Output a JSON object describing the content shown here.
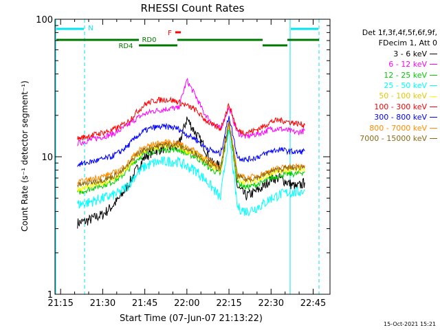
{
  "window": {
    "title": "RHESSI Count Rates"
  },
  "legend": {
    "header_line1": "Det 1f,3f,4f,5f,6f,9f,",
    "header_line2": "FDecim 1, Att 0"
  },
  "footer": {
    "timestamp": "15-Oct-2021 15:21"
  },
  "chart_data": {
    "type": "line",
    "title": "RHESSI Count Rates",
    "xlabel": "Start Time (07-Jun-07 21:13:22)",
    "ylabel": "Count Rate (s⁻¹ detector segment⁻¹)",
    "yscale": "log",
    "ylim": [
      1,
      100
    ],
    "xlim": [
      "21:13",
      "22:51"
    ],
    "x_ticks": [
      "21:15",
      "21:30",
      "21:45",
      "22:00",
      "22:15",
      "22:30",
      "22:45"
    ],
    "y_ticks": [
      "1",
      "10",
      "100"
    ],
    "legend_position": "right",
    "grid": false,
    "x": [
      "21:21",
      "21:24",
      "21:27",
      "21:30",
      "21:33",
      "21:36",
      "21:39",
      "21:42",
      "21:45",
      "21:48",
      "21:51",
      "21:54",
      "21:57",
      "22:00",
      "22:03",
      "22:06",
      "22:09",
      "22:12",
      "22:15",
      "22:18",
      "22:21",
      "22:24",
      "22:27",
      "22:30",
      "22:33",
      "22:36",
      "22:39",
      "22:42"
    ],
    "series": [
      {
        "name": "3 - 6 keV",
        "color": "#000000",
        "values": [
          3.3,
          3.4,
          3.6,
          3.8,
          4.3,
          5.0,
          6.2,
          8.0,
          10.0,
          11.0,
          11.5,
          11.8,
          12.0,
          19.0,
          15.0,
          12.0,
          9.0,
          8.5,
          18.0,
          6.0,
          5.2,
          5.5,
          6.0,
          7.0,
          7.0,
          6.5,
          6.0,
          6.5
        ]
      },
      {
        "name": "6 - 12 keV",
        "color": "#ff00ff",
        "values": [
          12.5,
          13.0,
          13.5,
          14.0,
          14.5,
          15.5,
          17.0,
          19.0,
          20.5,
          21.5,
          22.0,
          22.5,
          22.5,
          36.0,
          28.0,
          21.0,
          17.5,
          16.0,
          23.0,
          15.0,
          14.0,
          14.5,
          15.0,
          16.0,
          16.0,
          15.5,
          15.0,
          15.5
        ]
      },
      {
        "name": "12 - 25 keV",
        "color": "#00cc00",
        "values": [
          5.5,
          5.7,
          6.0,
          6.2,
          6.5,
          7.0,
          8.0,
          9.5,
          10.5,
          11.0,
          11.2,
          11.3,
          11.3,
          10.5,
          10.0,
          9.0,
          8.0,
          7.5,
          17.0,
          6.5,
          6.0,
          6.2,
          6.5,
          7.0,
          7.3,
          7.5,
          7.5,
          7.8
        ]
      },
      {
        "name": "25 - 50 keV",
        "color": "#00ffff",
        "values": [
          4.5,
          4.6,
          4.8,
          5.0,
          5.2,
          5.5,
          6.2,
          7.5,
          8.5,
          9.0,
          9.2,
          9.3,
          9.2,
          8.5,
          8.0,
          7.0,
          6.0,
          5.0,
          15.0,
          4.3,
          4.0,
          4.2,
          4.5,
          5.0,
          5.3,
          5.5,
          5.5,
          5.7
        ]
      },
      {
        "name": "50 - 100 keV",
        "color": "#ffff00",
        "values": [
          5.8,
          6.0,
          6.2,
          6.5,
          6.8,
          7.3,
          8.3,
          10.0,
          11.0,
          11.5,
          11.8,
          12.0,
          11.8,
          11.0,
          10.5,
          9.5,
          8.5,
          8.0,
          17.5,
          7.0,
          6.5,
          6.7,
          7.0,
          7.5,
          7.8,
          8.0,
          8.0,
          8.3
        ]
      },
      {
        "name": "100 - 300 keV",
        "color": "#ff0000",
        "values": [
          13.5,
          14.0,
          14.5,
          15.0,
          15.5,
          16.5,
          18.0,
          21.0,
          24.0,
          25.5,
          26.0,
          26.0,
          25.0,
          23.5,
          22.0,
          19.0,
          17.0,
          16.0,
          24.0,
          15.5,
          15.0,
          15.5,
          16.5,
          18.0,
          18.5,
          18.0,
          17.5,
          17.0
        ]
      },
      {
        "name": "300 - 800 keV",
        "color": "#0000ff",
        "values": [
          8.8,
          9.0,
          9.3,
          9.6,
          10.0,
          10.8,
          12.0,
          14.0,
          15.5,
          16.3,
          16.5,
          16.5,
          16.0,
          14.5,
          13.5,
          12.0,
          11.0,
          10.5,
          20.0,
          10.0,
          9.5,
          9.8,
          10.3,
          11.0,
          11.3,
          11.0,
          10.8,
          11.0
        ]
      },
      {
        "name": "800 - 7000 keV",
        "color": "#ff8c00",
        "values": [
          6.5,
          6.7,
          7.0,
          7.2,
          7.5,
          8.0,
          9.0,
          10.8,
          11.8,
          12.3,
          12.6,
          12.8,
          12.5,
          11.8,
          11.0,
          10.0,
          9.0,
          8.5,
          18.0,
          7.5,
          7.0,
          7.2,
          7.5,
          8.0,
          8.3,
          8.5,
          8.5,
          8.7
        ]
      },
      {
        "name": "7000 - 15000 keV",
        "color": "#8b6914",
        "values": [
          6.2,
          6.4,
          6.6,
          6.8,
          7.1,
          7.6,
          8.6,
          10.3,
          11.3,
          11.8,
          12.1,
          12.3,
          12.0,
          11.3,
          10.6,
          9.6,
          8.6,
          8.1,
          17.5,
          7.2,
          6.8,
          7.0,
          7.3,
          7.8,
          8.1,
          8.3,
          8.3,
          8.5
        ]
      }
    ],
    "annotations": {
      "night_label": "N",
      "flare_label": "F",
      "rd0_label": "RD0",
      "rd4_label": "RD4"
    }
  }
}
